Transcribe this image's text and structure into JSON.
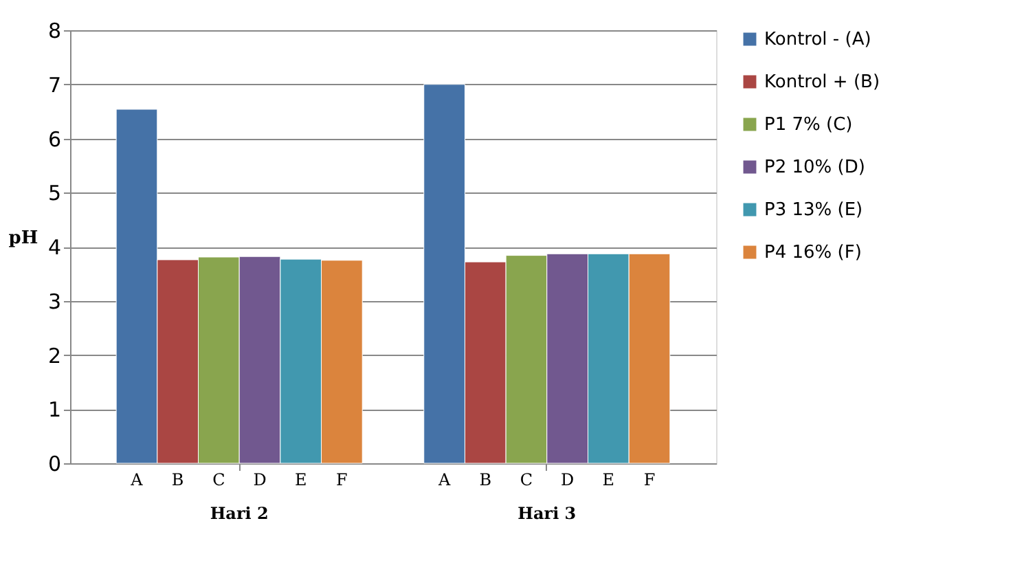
{
  "chart_data": {
    "type": "bar",
    "ylabel": "pH",
    "categories": [
      "Hari 2",
      "Hari 3"
    ],
    "series": [
      {
        "name": "Kontrol - (A)",
        "color": "#4572a7",
        "values": [
          6.54,
          7.0
        ]
      },
      {
        "name": "Kontrol + (B)",
        "color": "#aa4643",
        "values": [
          3.76,
          3.72
        ]
      },
      {
        "name": "P1 7% (C)",
        "color": "#89a54e",
        "values": [
          3.81,
          3.84
        ]
      },
      {
        "name": "P2 10% (D)",
        "color": "#71588f",
        "values": [
          3.82,
          3.87
        ]
      },
      {
        "name": "P3 13% (E)",
        "color": "#4198af",
        "values": [
          3.77,
          3.87
        ]
      },
      {
        "name": "P4 16% (F)",
        "color": "#db843d",
        "values": [
          3.75,
          3.87
        ]
      }
    ],
    "annotations": [
      "A",
      "B",
      "C",
      "D",
      "E",
      "F",
      "A",
      "B",
      "C",
      "D",
      "E",
      "F"
    ],
    "ylim": [
      0,
      8
    ],
    "yticks": [
      0,
      1,
      2,
      3,
      4,
      5,
      6,
      7,
      8
    ],
    "grid": "y",
    "legend": "right"
  }
}
